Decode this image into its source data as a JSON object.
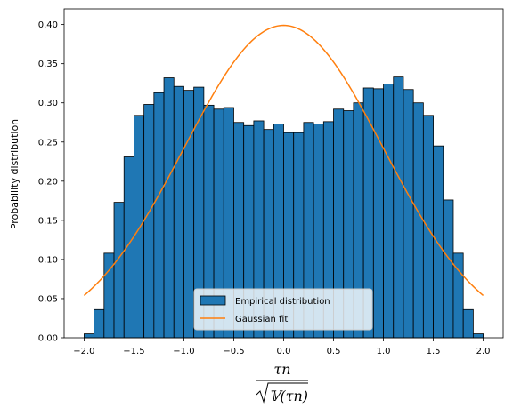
{
  "chart_data": {
    "type": "bar",
    "xlabel_numerator": "τn",
    "xlabel_denominator": "𝕍(τn)",
    "ylabel": "Probability distribution",
    "xlim": [
      -2.2,
      2.2
    ],
    "ylim": [
      0,
      0.42
    ],
    "xticks": [
      "−2.0",
      "−1.5",
      "−1.0",
      "−0.5",
      "0.0",
      "0.5",
      "1.0",
      "1.5",
      "2.0"
    ],
    "xtick_values": [
      -2.0,
      -1.5,
      -1.0,
      -0.5,
      0.0,
      0.5,
      1.0,
      1.5,
      2.0
    ],
    "yticks": [
      "0.00",
      "0.05",
      "0.10",
      "0.15",
      "0.20",
      "0.25",
      "0.30",
      "0.35",
      "0.40"
    ],
    "ytick_values": [
      0.0,
      0.05,
      0.1,
      0.15,
      0.2,
      0.25,
      0.3,
      0.35,
      0.4
    ],
    "bin_edges_start": -2.0,
    "bin_width": 0.1,
    "series": [
      {
        "name": "Empirical distribution",
        "kind": "histogram",
        "color": "#1f77b4",
        "values": [
          0.005,
          0.036,
          0.108,
          0.173,
          0.231,
          0.284,
          0.298,
          0.313,
          0.332,
          0.321,
          0.316,
          0.32,
          0.297,
          0.292,
          0.294,
          0.275,
          0.271,
          0.277,
          0.266,
          0.273,
          0.262,
          0.262,
          0.275,
          0.273,
          0.276,
          0.292,
          0.29,
          0.3,
          0.319,
          0.318,
          0.324,
          0.333,
          0.317,
          0.3,
          0.284,
          0.245,
          0.176,
          0.108,
          0.036,
          0.005
        ]
      },
      {
        "name": "Gaussian fit",
        "kind": "line",
        "color": "#ff7f0e",
        "mean": 0.0,
        "std": 1.0,
        "x_range": [
          -2.0,
          2.0
        ]
      }
    ],
    "legend_position": "lower center",
    "grid": false
  }
}
